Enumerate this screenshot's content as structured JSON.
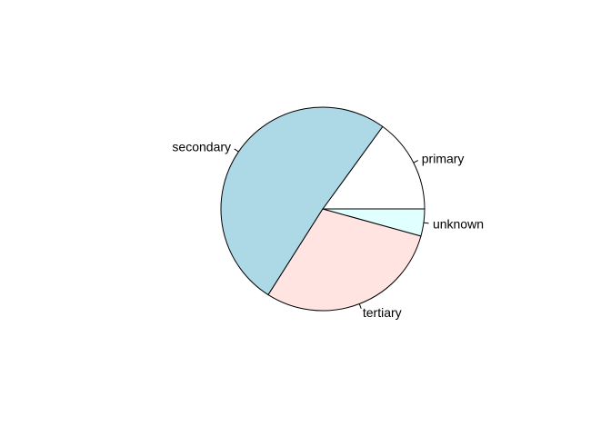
{
  "chart_data": {
    "type": "pie",
    "title": "",
    "start_angle_deg": 0,
    "direction": "counterclockwise",
    "slices": [
      {
        "label": "primary",
        "value": 0.15,
        "color": "#ffffff"
      },
      {
        "label": "secondary",
        "value": 0.51,
        "color": "#add8e6"
      },
      {
        "label": "tertiary",
        "value": 0.297,
        "color": "#ffe4e1"
      },
      {
        "label": "unknown",
        "value": 0.043,
        "color": "#e0ffff"
      }
    ]
  }
}
